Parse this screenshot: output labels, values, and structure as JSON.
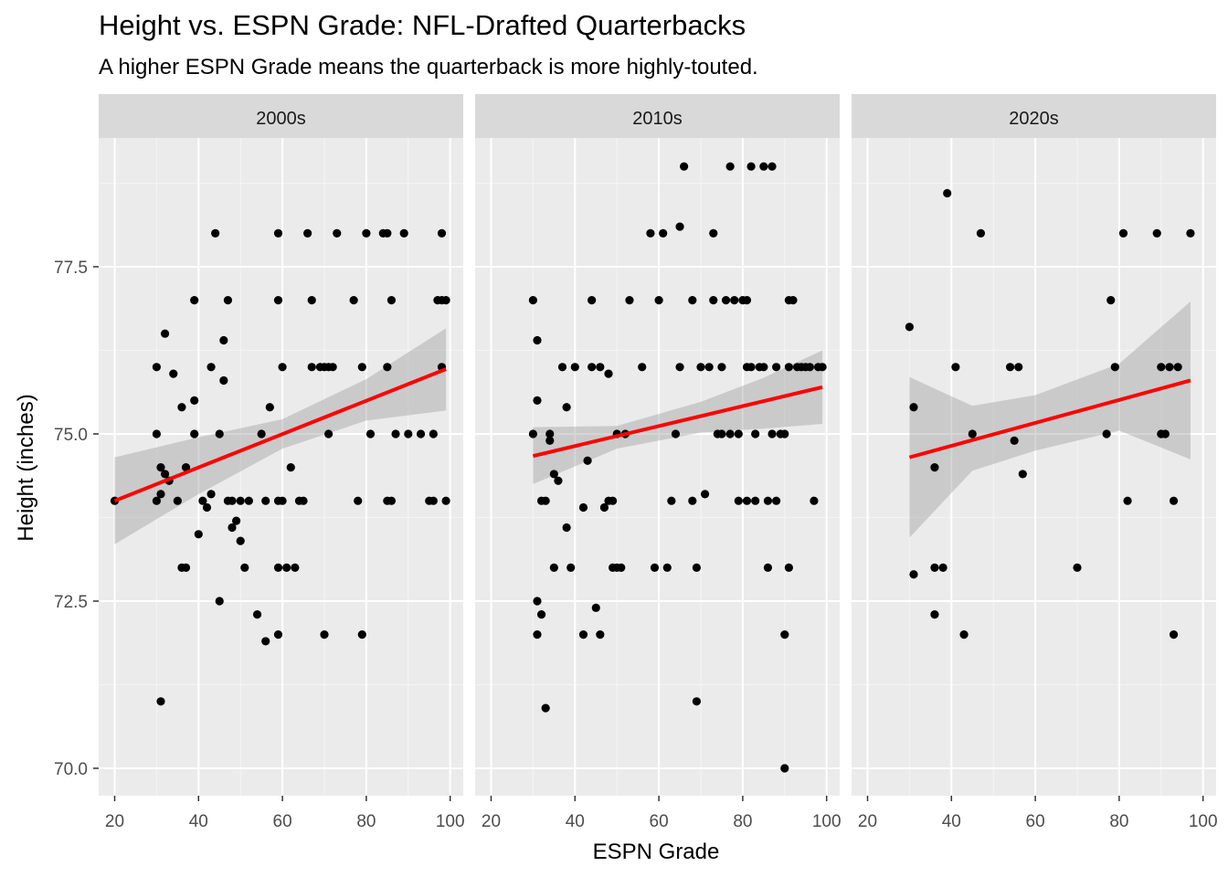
{
  "chart_data": {
    "type": "scatter",
    "title": "Height vs. ESPN Grade: NFL-Drafted Quarterbacks",
    "subtitle": "A higher ESPN Grade means the quarterback is more highly-touted.",
    "xlabel": "ESPN Grade",
    "ylabel": "Height (inches)",
    "xlim": [
      16,
      101
    ],
    "ylim": [
      69.6,
      79.85
    ],
    "x_ticks": [
      20,
      40,
      60,
      80,
      100
    ],
    "y_ticks": [
      70.0,
      72.5,
      75.0,
      77.5
    ],
    "y_tick_labels": [
      "70.0",
      "72.5",
      "75.0",
      "77.5"
    ],
    "grid": true,
    "trend_color": "#ff0000",
    "point_color": "#000000",
    "panel_bg": "#ebebeb",
    "strip_bg": "#d9d9d9",
    "panels": [
      {
        "label": "2000s",
        "trend": {
          "x0": 20,
          "y0": 74.0,
          "x1": 99,
          "y1": 75.97
        },
        "band": [
          [
            20,
            73.35,
            74.65
          ],
          [
            40,
            74.1,
            74.95
          ],
          [
            60,
            74.78,
            75.22
          ],
          [
            80,
            75.2,
            75.82
          ],
          [
            99,
            75.35,
            76.58
          ]
        ],
        "points": [
          [
            20,
            74
          ],
          [
            30,
            76
          ],
          [
            30,
            75
          ],
          [
            30,
            74
          ],
          [
            31,
            74.5
          ],
          [
            31,
            74.1
          ],
          [
            31,
            71
          ],
          [
            32,
            76.5
          ],
          [
            32,
            74.4
          ],
          [
            33,
            74.3
          ],
          [
            34,
            75.9
          ],
          [
            35,
            74
          ],
          [
            36,
            75.4
          ],
          [
            36,
            73
          ],
          [
            37,
            74.5
          ],
          [
            37,
            73
          ],
          [
            39,
            77
          ],
          [
            39,
            75.5
          ],
          [
            39,
            75
          ],
          [
            40,
            73.5
          ],
          [
            41,
            74
          ],
          [
            42,
            73.9
          ],
          [
            43,
            74.1
          ],
          [
            43,
            76
          ],
          [
            44,
            78
          ],
          [
            45,
            72.5
          ],
          [
            45,
            75
          ],
          [
            46,
            76.4
          ],
          [
            46,
            75.8
          ],
          [
            47,
            77
          ],
          [
            47,
            74
          ],
          [
            48,
            74
          ],
          [
            48,
            73.6
          ],
          [
            49,
            73.7
          ],
          [
            50,
            74
          ],
          [
            50,
            73.4
          ],
          [
            51,
            73
          ],
          [
            52,
            74
          ],
          [
            54,
            72.3
          ],
          [
            55,
            75
          ],
          [
            56,
            71.9
          ],
          [
            56,
            74
          ],
          [
            57,
            75.4
          ],
          [
            59,
            78
          ],
          [
            59,
            77
          ],
          [
            59,
            74
          ],
          [
            59,
            73
          ],
          [
            59,
            72
          ],
          [
            60,
            76
          ],
          [
            60,
            74
          ],
          [
            61,
            73
          ],
          [
            62,
            74.5
          ],
          [
            63,
            73
          ],
          [
            64,
            74
          ],
          [
            65,
            74
          ],
          [
            66,
            78
          ],
          [
            67,
            77
          ],
          [
            67,
            76
          ],
          [
            69,
            76
          ],
          [
            70,
            76
          ],
          [
            70,
            72
          ],
          [
            71,
            76
          ],
          [
            71,
            75
          ],
          [
            72,
            76
          ],
          [
            73,
            78
          ],
          [
            77,
            77
          ],
          [
            78,
            74
          ],
          [
            79,
            76
          ],
          [
            79,
            72
          ],
          [
            80,
            78
          ],
          [
            81,
            75
          ],
          [
            84,
            78
          ],
          [
            85,
            78
          ],
          [
            85,
            76
          ],
          [
            85,
            74
          ],
          [
            86,
            77
          ],
          [
            86,
            74
          ],
          [
            87,
            75
          ],
          [
            89,
            78
          ],
          [
            90,
            75
          ],
          [
            93,
            75
          ],
          [
            95,
            74
          ],
          [
            96,
            74
          ],
          [
            96,
            75
          ],
          [
            97,
            77
          ],
          [
            98,
            78
          ],
          [
            98,
            77
          ],
          [
            98,
            76
          ],
          [
            99,
            77
          ],
          [
            99,
            74
          ]
        ]
      },
      {
        "label": "2010s",
        "trend": {
          "x0": 30,
          "y0": 74.67,
          "x1": 99,
          "y1": 75.7
        },
        "band": [
          [
            30,
            74.25,
            75.1
          ],
          [
            50,
            74.78,
            75.12
          ],
          [
            70,
            75.02,
            75.48
          ],
          [
            85,
            75.08,
            75.84
          ],
          [
            99,
            75.15,
            76.25
          ]
        ],
        "points": [
          [
            30,
            77
          ],
          [
            30,
            75
          ],
          [
            31,
            76.4
          ],
          [
            31,
            75.5
          ],
          [
            31,
            72.5
          ],
          [
            31,
            72
          ],
          [
            32,
            74
          ],
          [
            32,
            72.3
          ],
          [
            33,
            74
          ],
          [
            33,
            70.9
          ],
          [
            34,
            74.9
          ],
          [
            34,
            75
          ],
          [
            35,
            74.4
          ],
          [
            35,
            73
          ],
          [
            36,
            74.3
          ],
          [
            37,
            76
          ],
          [
            38,
            73.6
          ],
          [
            38,
            75.4
          ],
          [
            39,
            73
          ],
          [
            40,
            76
          ],
          [
            42,
            73.9
          ],
          [
            42,
            72
          ],
          [
            43,
            74.6
          ],
          [
            44,
            77
          ],
          [
            44,
            76
          ],
          [
            45,
            72.4
          ],
          [
            46,
            76
          ],
          [
            46,
            72
          ],
          [
            47,
            73.9
          ],
          [
            48,
            75.9
          ],
          [
            48,
            74
          ],
          [
            49,
            74
          ],
          [
            49,
            73
          ],
          [
            50,
            75
          ],
          [
            50,
            73
          ],
          [
            51,
            73
          ],
          [
            52,
            75
          ],
          [
            53,
            77
          ],
          [
            56,
            76
          ],
          [
            58,
            78
          ],
          [
            59,
            73
          ],
          [
            60,
            77
          ],
          [
            61,
            78
          ],
          [
            62,
            73
          ],
          [
            63,
            74
          ],
          [
            64,
            75
          ],
          [
            65,
            78.1
          ],
          [
            65,
            76
          ],
          [
            66,
            79
          ],
          [
            68,
            77
          ],
          [
            68,
            74
          ],
          [
            69,
            73
          ],
          [
            69,
            71
          ],
          [
            70,
            76
          ],
          [
            71,
            74.1
          ],
          [
            72,
            76
          ],
          [
            73,
            77
          ],
          [
            73,
            78
          ],
          [
            74,
            75
          ],
          [
            75,
            76
          ],
          [
            75,
            75
          ],
          [
            76,
            77
          ],
          [
            77,
            79
          ],
          [
            77,
            75
          ],
          [
            78,
            77
          ],
          [
            79,
            75
          ],
          [
            79,
            74
          ],
          [
            80,
            77
          ],
          [
            81,
            77
          ],
          [
            81,
            76
          ],
          [
            81,
            74
          ],
          [
            82,
            79
          ],
          [
            82,
            76
          ],
          [
            83,
            75
          ],
          [
            83,
            74
          ],
          [
            84,
            76
          ],
          [
            85,
            79
          ],
          [
            85,
            76
          ],
          [
            86,
            73
          ],
          [
            86,
            74
          ],
          [
            87,
            79
          ],
          [
            87,
            75
          ],
          [
            88,
            76
          ],
          [
            88,
            74
          ],
          [
            89,
            75
          ],
          [
            90,
            75
          ],
          [
            90,
            72
          ],
          [
            90,
            70
          ],
          [
            91,
            77
          ],
          [
            91,
            76
          ],
          [
            91,
            73
          ],
          [
            92,
            77
          ],
          [
            93,
            76
          ],
          [
            94,
            76
          ],
          [
            95,
            76
          ],
          [
            96,
            76
          ],
          [
            97,
            74
          ],
          [
            98,
            76
          ],
          [
            99,
            76
          ]
        ]
      },
      {
        "label": "2020s",
        "trend": {
          "x0": 30,
          "y0": 74.65,
          "x1": 97,
          "y1": 75.8
        },
        "band": [
          [
            30,
            73.45,
            75.85
          ],
          [
            45,
            74.45,
            75.42
          ],
          [
            60,
            74.75,
            75.58
          ],
          [
            80,
            75.05,
            76.05
          ],
          [
            97,
            74.62,
            76.98
          ]
        ],
        "points": [
          [
            30,
            76.6
          ],
          [
            31,
            75.4
          ],
          [
            31,
            72.9
          ],
          [
            36,
            74.5
          ],
          [
            36,
            73
          ],
          [
            36,
            72.3
          ],
          [
            38,
            73
          ],
          [
            39,
            78.6
          ],
          [
            41,
            76
          ],
          [
            43,
            72
          ],
          [
            45,
            75
          ],
          [
            47,
            78
          ],
          [
            54,
            76
          ],
          [
            55,
            74.9
          ],
          [
            56,
            76
          ],
          [
            57,
            74.4
          ],
          [
            70,
            73
          ],
          [
            77,
            75
          ],
          [
            78,
            77
          ],
          [
            79,
            76
          ],
          [
            81,
            78
          ],
          [
            82,
            74
          ],
          [
            89,
            78
          ],
          [
            90,
            76
          ],
          [
            90,
            75
          ],
          [
            91,
            75
          ],
          [
            92,
            76
          ],
          [
            93,
            74
          ],
          [
            93,
            72
          ],
          [
            94,
            76
          ],
          [
            97,
            78
          ]
        ]
      }
    ]
  }
}
